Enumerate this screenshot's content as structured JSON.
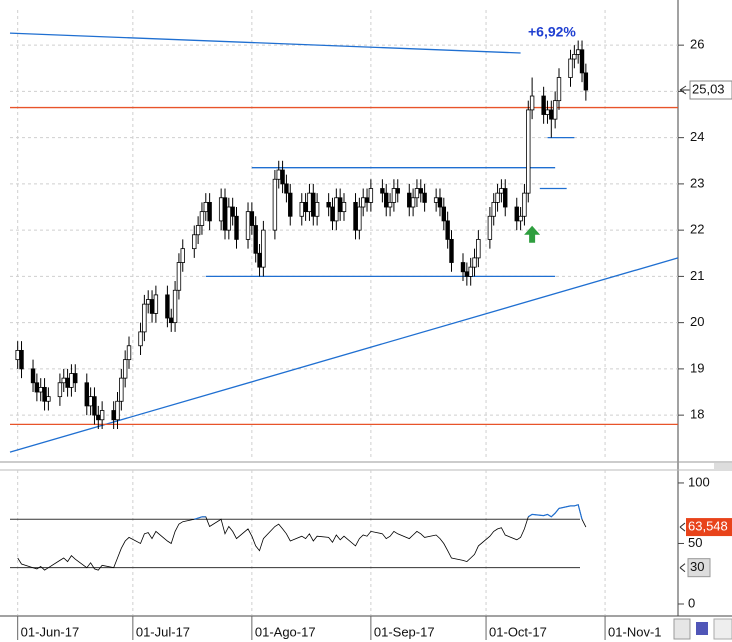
{
  "chart_data": {
    "type": "candlestick",
    "annotation": "+6,92%",
    "current_price": {
      "value": 25.03,
      "label": "25,03"
    },
    "categories": [
      "2017-06-01",
      "2017-06-02",
      "2017-06-05",
      "2017-06-06",
      "2017-06-07",
      "2017-06-08",
      "2017-06-09",
      "2017-06-12",
      "2017-06-13",
      "2017-06-14",
      "2017-06-15",
      "2017-06-16",
      "2017-06-19",
      "2017-06-20",
      "2017-06-21",
      "2017-06-22",
      "2017-06-23",
      "2017-06-26",
      "2017-06-27",
      "2017-06-28",
      "2017-06-29",
      "2017-06-30",
      "2017-07-03",
      "2017-07-04",
      "2017-07-05",
      "2017-07-06",
      "2017-07-07",
      "2017-07-10",
      "2017-07-11",
      "2017-07-12",
      "2017-07-13",
      "2017-07-14",
      "2017-07-17",
      "2017-07-18",
      "2017-07-19",
      "2017-07-20",
      "2017-07-21",
      "2017-07-24",
      "2017-07-25",
      "2017-07-26",
      "2017-07-27",
      "2017-07-28",
      "2017-07-31",
      "2017-08-01",
      "2017-08-02",
      "2017-08-03",
      "2017-08-04",
      "2017-08-07",
      "2017-08-08",
      "2017-08-09",
      "2017-08-10",
      "2017-08-11",
      "2017-08-14",
      "2017-08-15",
      "2017-08-16",
      "2017-08-17",
      "2017-08-18",
      "2017-08-21",
      "2017-08-22",
      "2017-08-23",
      "2017-08-24",
      "2017-08-25",
      "2017-08-28",
      "2017-08-29",
      "2017-08-30",
      "2017-08-31",
      "2017-09-01",
      "2017-09-04",
      "2017-09-05",
      "2017-09-06",
      "2017-09-07",
      "2017-09-08",
      "2017-09-11",
      "2017-09-12",
      "2017-09-13",
      "2017-09-14",
      "2017-09-15",
      "2017-09-18",
      "2017-09-19",
      "2017-09-20",
      "2017-09-21",
      "2017-09-22",
      "2017-09-25",
      "2017-09-26",
      "2017-09-27",
      "2017-09-28",
      "2017-09-29",
      "2017-10-02",
      "2017-10-03",
      "2017-10-04",
      "2017-10-05",
      "2017-10-06",
      "2017-10-09",
      "2017-10-10",
      "2017-10-11",
      "2017-10-12",
      "2017-10-13",
      "2017-10-16",
      "2017-10-17",
      "2017-10-18",
      "2017-10-19",
      "2017-10-20",
      "2017-10-23",
      "2017-10-24",
      "2017-10-25",
      "2017-10-26",
      "2017-10-27"
    ],
    "open": [
      19.2,
      19.4,
      19.0,
      18.7,
      18.5,
      18.6,
      18.3,
      18.4,
      18.7,
      18.8,
      18.6,
      18.9,
      18.7,
      18.2,
      18.4,
      18.0,
      17.9,
      18.1,
      17.9,
      18.3,
      18.8,
      19.2,
      19.5,
      19.8,
      20.4,
      20.5,
      20.2,
      20.6,
      20.1,
      20.0,
      20.7,
      21.3,
      21.6,
      21.9,
      22.1,
      22.4,
      22.6,
      22.2,
      22.7,
      22.0,
      22.5,
      22.3,
      21.8,
      22.4,
      22.1,
      21.5,
      21.2,
      22.0,
      23.1,
      23.3,
      23.0,
      22.8,
      22.3,
      22.6,
      22.4,
      22.8,
      22.3,
      22.6,
      22.5,
      22.2,
      22.7,
      22.4,
      22.6,
      22.0,
      22.5,
      22.7,
      22.6,
      22.9,
      22.8,
      22.5,
      22.6,
      22.9,
      22.8,
      22.5,
      22.7,
      22.9,
      22.8,
      22.6,
      22.7,
      22.5,
      22.2,
      21.8,
      21.3,
      21.1,
      21.0,
      21.2,
      21.4,
      21.8,
      22.3,
      22.6,
      22.8,
      22.9,
      22.5,
      22.2,
      22.3,
      22.8,
      24.6,
      24.9,
      24.5,
      24.6,
      24.4,
      24.8,
      25.3,
      25.7,
      25.8,
      25.9,
      25.4
    ],
    "high": [
      19.6,
      19.6,
      19.2,
      18.9,
      18.8,
      18.8,
      18.6,
      18.9,
      19.0,
      19.0,
      19.1,
      19.1,
      18.9,
      18.6,
      18.6,
      18.2,
      18.3,
      18.3,
      18.5,
      19.0,
      19.4,
      19.7,
      20.0,
      20.6,
      20.7,
      20.7,
      20.8,
      20.8,
      20.3,
      20.9,
      21.5,
      21.8,
      22.1,
      22.3,
      22.6,
      22.8,
      22.8,
      22.9,
      22.9,
      22.7,
      22.7,
      22.5,
      22.6,
      22.6,
      22.3,
      21.7,
      22.2,
      23.3,
      23.5,
      23.5,
      23.2,
      23.0,
      22.8,
      22.8,
      23.0,
      23.0,
      22.8,
      22.8,
      22.7,
      22.9,
      22.9,
      22.8,
      22.8,
      22.7,
      22.9,
      22.9,
      23.1,
      23.1,
      23.0,
      22.8,
      23.1,
      23.1,
      23.0,
      22.9,
      23.1,
      23.1,
      23.0,
      22.9,
      22.9,
      22.7,
      22.4,
      22.0,
      21.5,
      21.3,
      21.4,
      21.6,
      22.0,
      22.5,
      22.8,
      23.0,
      23.1,
      23.1,
      22.7,
      22.5,
      23.0,
      24.8,
      25.3,
      25.1,
      24.8,
      24.8,
      25.0,
      25.5,
      25.9,
      26.0,
      26.1,
      26.1,
      25.6
    ],
    "low": [
      19.0,
      18.8,
      18.5,
      18.3,
      18.3,
      18.1,
      18.1,
      18.2,
      18.5,
      18.4,
      18.4,
      18.5,
      18.0,
      18.0,
      17.8,
      17.7,
      17.7,
      17.7,
      17.7,
      18.1,
      18.6,
      19.0,
      19.3,
      19.6,
      20.2,
      20.0,
      20.0,
      19.9,
      19.8,
      19.8,
      20.5,
      21.1,
      21.4,
      21.7,
      21.9,
      22.2,
      22.0,
      22.0,
      21.8,
      21.8,
      22.1,
      21.6,
      21.6,
      21.9,
      21.3,
      21.0,
      21.0,
      21.8,
      22.9,
      22.8,
      22.6,
      22.1,
      22.1,
      22.2,
      22.2,
      22.1,
      22.1,
      22.3,
      22.0,
      22.0,
      22.2,
      22.2,
      21.8,
      21.8,
      22.3,
      22.4,
      22.4,
      22.6,
      22.3,
      22.3,
      22.4,
      22.6,
      22.3,
      22.3,
      22.5,
      22.6,
      22.4,
      22.4,
      22.3,
      22.0,
      21.6,
      21.1,
      20.9,
      20.8,
      20.8,
      21.0,
      21.2,
      21.6,
      22.1,
      22.4,
      22.6,
      22.3,
      22.0,
      22.0,
      22.1,
      22.6,
      24.4,
      24.3,
      24.3,
      24.0,
      24.2,
      24.6,
      25.1,
      25.5,
      25.6,
      25.2,
      24.8
    ],
    "close": [
      19.4,
      19.0,
      18.7,
      18.5,
      18.6,
      18.3,
      18.4,
      18.7,
      18.8,
      18.6,
      18.9,
      18.7,
      18.2,
      18.4,
      18.0,
      17.9,
      18.1,
      17.9,
      18.3,
      18.8,
      19.2,
      19.5,
      19.8,
      20.4,
      20.5,
      20.2,
      20.6,
      20.1,
      20.0,
      20.7,
      21.3,
      21.6,
      21.9,
      22.1,
      22.4,
      22.6,
      22.2,
      22.7,
      22.0,
      22.5,
      22.3,
      21.8,
      22.4,
      22.1,
      21.5,
      21.2,
      22.0,
      23.1,
      23.3,
      23.0,
      22.8,
      22.3,
      22.6,
      22.4,
      22.8,
      22.3,
      22.6,
      22.5,
      22.2,
      22.7,
      22.4,
      22.6,
      22.0,
      22.5,
      22.7,
      22.6,
      22.9,
      22.8,
      22.5,
      22.6,
      22.9,
      22.8,
      22.5,
      22.7,
      22.9,
      22.8,
      22.6,
      22.7,
      22.5,
      22.2,
      21.8,
      21.3,
      21.1,
      21.0,
      21.2,
      21.4,
      21.8,
      22.3,
      22.6,
      22.8,
      22.9,
      22.5,
      22.2,
      22.3,
      22.8,
      24.6,
      24.9,
      24.5,
      24.6,
      24.4,
      24.8,
      25.3,
      25.7,
      25.8,
      25.9,
      25.4,
      25.03
    ],
    "up_color": "#ffffff",
    "down_color": "#000000",
    "xlim": [
      "2017-05-30",
      "2017-11-20"
    ],
    "xticks": [
      {
        "value": "2017-06-01",
        "label": "01-Jun-17"
      },
      {
        "value": "2017-07-01",
        "label": "01-Jul-17"
      },
      {
        "value": "2017-08-01",
        "label": "01-Ago-17"
      },
      {
        "value": "2017-09-01",
        "label": "01-Sep-17"
      },
      {
        "value": "2017-10-01",
        "label": "01-Oct-17"
      },
      {
        "value": "2017-11-01",
        "label": "01-Nov-1"
      }
    ],
    "ylim": [
      17.03,
      26.76
    ],
    "yticks": [
      18,
      19,
      20,
      21,
      22,
      23,
      24,
      25,
      26
    ],
    "grid": true,
    "lines": [
      {
        "color": "#1f6fd1",
        "x": [
          "2017-05-30",
          "2017-10-10"
        ],
        "y": [
          26.26,
          25.83
        ]
      },
      {
        "color": "#1f6fd1",
        "x": [
          "2017-05-30",
          "2017-11-20"
        ],
        "y": [
          17.2,
          21.4
        ]
      },
      {
        "color": "#1f6fd1",
        "x": [
          "2017-08-01",
          "2017-10-19"
        ],
        "y": [
          23.35,
          23.35
        ]
      },
      {
        "color": "#1f6fd1",
        "x": [
          "2017-07-20",
          "2017-10-19"
        ],
        "y": [
          21.0,
          21.0
        ]
      },
      {
        "color": "#1f6fd1",
        "x": [
          "2017-10-17",
          "2017-10-24"
        ],
        "y": [
          24.0,
          24.0
        ]
      },
      {
        "color": "#1f6fd1",
        "x": [
          "2017-10-15",
          "2017-10-22"
        ],
        "y": [
          22.9,
          22.9
        ]
      },
      {
        "color": "#e8542a",
        "x": [
          "2017-05-30",
          "2017-11-20"
        ],
        "y": [
          24.65,
          24.65
        ]
      },
      {
        "color": "#e8542a",
        "x": [
          "2017-05-30",
          "2017-11-20"
        ],
        "y": [
          17.8,
          17.8
        ]
      }
    ],
    "markers": [
      {
        "x": "2017-10-13",
        "y": 21.9,
        "color": "#2e9e3e"
      }
    ],
    "indicator": {
      "color": "#000000",
      "values": [
        38,
        33,
        30,
        29,
        31,
        28,
        30,
        36,
        38,
        35,
        40,
        37,
        30,
        34,
        29,
        28,
        32,
        30,
        38,
        46,
        52,
        55,
        50,
        58,
        59,
        54,
        60,
        52,
        50,
        60,
        66,
        68,
        70,
        71,
        72,
        72,
        64,
        70,
        58,
        64,
        60,
        54,
        62,
        56,
        48,
        44,
        54,
        64,
        66,
        62,
        58,
        52,
        56,
        54,
        58,
        52,
        56,
        55,
        51,
        57,
        53,
        56,
        48,
        54,
        57,
        56,
        60,
        58,
        54,
        56,
        60,
        58,
        54,
        57,
        60,
        58,
        55,
        57,
        54,
        50,
        44,
        38,
        36,
        35,
        38,
        41,
        48,
        56,
        60,
        62,
        63,
        57,
        53,
        55,
        62,
        72,
        74,
        73,
        74,
        72,
        75,
        79,
        81,
        81,
        82,
        70,
        63.548
      ],
      "ylim": [
        -9.1,
        110.7
      ],
      "yticks": [
        0,
        50,
        100
      ],
      "levels": [
        30,
        70
      ],
      "level_color": "#333333",
      "current": {
        "value": 63.548,
        "label": "63,548",
        "color": "#e8431a"
      }
    }
  }
}
